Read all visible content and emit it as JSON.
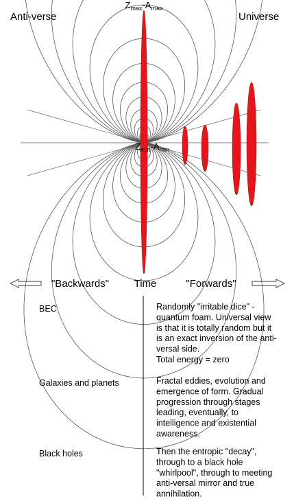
{
  "diagram": {
    "left_label": "Anti-verse",
    "right_label": "Universe",
    "top_label": [
      "Z",
      "max",
      "-A",
      "max"
    ],
    "center_label": [
      "Z",
      "min",
      "-A",
      "min"
    ],
    "time_axis": {
      "backwards": "\"Backwards\"",
      "time": "Time",
      "forwards": "\"Forwards\""
    }
  },
  "table": {
    "rows": [
      {
        "label": "BEC",
        "text": [
          "Randomly \"irritable dice\" -",
          "quantum foam. Universal view",
          "is that it is totally random but it",
          "is an exact inversion of the anti-",
          "versal side.",
          "Total energy = zero"
        ]
      },
      {
        "label": "Galaxies and planets",
        "text": [
          "Fractal eddies, evolution and",
          "emergence of form. Gradual",
          "progression through stages",
          "leading, eventually, to",
          "intelligence and existential",
          "awareness."
        ]
      },
      {
        "label": "Black holes",
        "text": [
          "Then the entropic \"decay\",",
          "through to a black hole",
          "\"whirlpool\", through to meeting",
          "anti-versal mirror and true",
          "annihilation."
        ]
      }
    ]
  }
}
